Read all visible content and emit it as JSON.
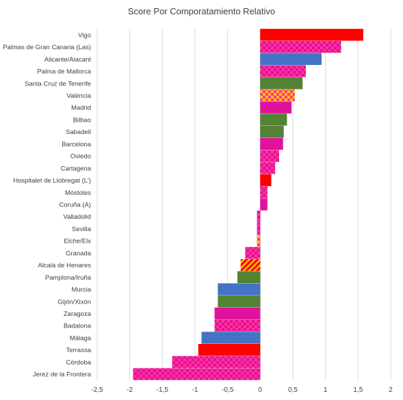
{
  "chart_data": {
    "type": "bar",
    "orientation": "horizontal",
    "title": "Score Por Comporatamiento Relativo",
    "xlabel": "",
    "ylabel": "",
    "xlim": [
      -2.5,
      2
    ],
    "xticks": [
      "-2,5",
      "-2",
      "-1,5",
      "-1",
      "-0,5",
      "0",
      "0,5",
      "1",
      "1,5",
      "2"
    ],
    "xtick_values": [
      -2.5,
      -2,
      -1.5,
      -1,
      -0.5,
      0,
      0.5,
      1,
      1.5,
      2
    ],
    "grid": "vertical",
    "legend": "none",
    "categories": [
      "Vigo",
      "Palmas de Gran Canaria (Las)",
      "Alicante/Alacant",
      "Palma de Mallorca",
      "Santa Cruz de Tenerife",
      "València",
      "Madrid",
      "Bilbao",
      "Sabadell",
      "Barcelona",
      "Oviedo",
      "Cartagena",
      "Hospitalet de Llobregat (L')",
      "Móstoles",
      "Coruña (A)",
      "Valladolid",
      "Sevilla",
      "Elche/Elx",
      "Granada",
      "Alcalá de Henares",
      "Pamplona/Iruña",
      "Murcia",
      "Gijón/Xixón",
      "Zaragoza",
      "Badalona",
      "Málaga",
      "Terrassa",
      "Córdoba",
      "Jerez de la Frontera"
    ],
    "values": [
      1.58,
      1.24,
      0.94,
      0.7,
      0.65,
      0.53,
      0.48,
      0.41,
      0.36,
      0.35,
      0.29,
      0.23,
      0.17,
      0.11,
      0.11,
      -0.05,
      -0.05,
      -0.05,
      -0.23,
      -0.3,
      -0.35,
      -0.65,
      -0.65,
      -0.7,
      -0.7,
      -0.9,
      -0.95,
      -1.35,
      -1.95
    ],
    "fills": [
      "red",
      "pink-check",
      "blue",
      "pink-check",
      "green",
      "yellow-check",
      "magenta",
      "green",
      "green",
      "magenta",
      "pink-check",
      "pink-check",
      "red",
      "pink-check",
      "magenta",
      "pink-check",
      "pink-check",
      "yellow-check",
      "pink-check",
      "yellow-stripe",
      "green",
      "blue",
      "green",
      "magenta",
      "pink-check",
      "blue",
      "red",
      "pink-check",
      "pink-check"
    ],
    "colors": {
      "red": "#ff0000",
      "blue": "#4472c4",
      "green": "#548235",
      "magenta": "#e0119c",
      "pink": "#ff3399",
      "yellow": "#ffc000",
      "grid": "#d9d9d9",
      "axis": "#bfbfbf",
      "text": "#404040"
    }
  }
}
